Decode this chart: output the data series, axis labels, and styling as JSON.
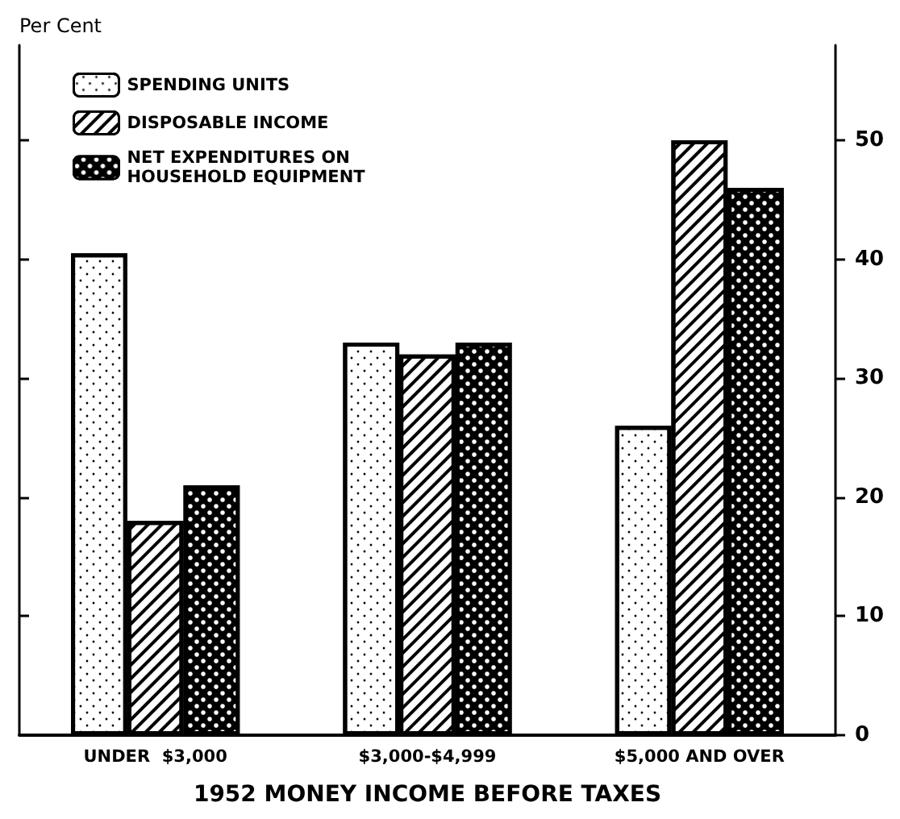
{
  "chart_data": {
    "type": "bar",
    "ylabel": "Per Cent",
    "xlabel": "1952 MONEY INCOME BEFORE TAXES",
    "categories": [
      "UNDER  $3,000",
      "$3,000-$4,999",
      "$5,000 AND OVER"
    ],
    "series": [
      {
        "name": "SPENDING UNITS",
        "color": "#ffffff",
        "values": [
          40.5,
          33,
          26
        ]
      },
      {
        "name": "DISPOSABLE INCOME",
        "color": "#ffffff",
        "values": [
          18,
          32,
          50
        ]
      },
      {
        "name": "NET EXPENDITURES ON HOUSEHOLD EQUIPMENT",
        "color": "#000000",
        "values": [
          21,
          33,
          46
        ]
      }
    ],
    "ylim": [
      0,
      58
    ],
    "yticks": [
      0,
      10,
      20,
      30,
      40,
      50
    ],
    "grid": false,
    "legend": "top left"
  }
}
